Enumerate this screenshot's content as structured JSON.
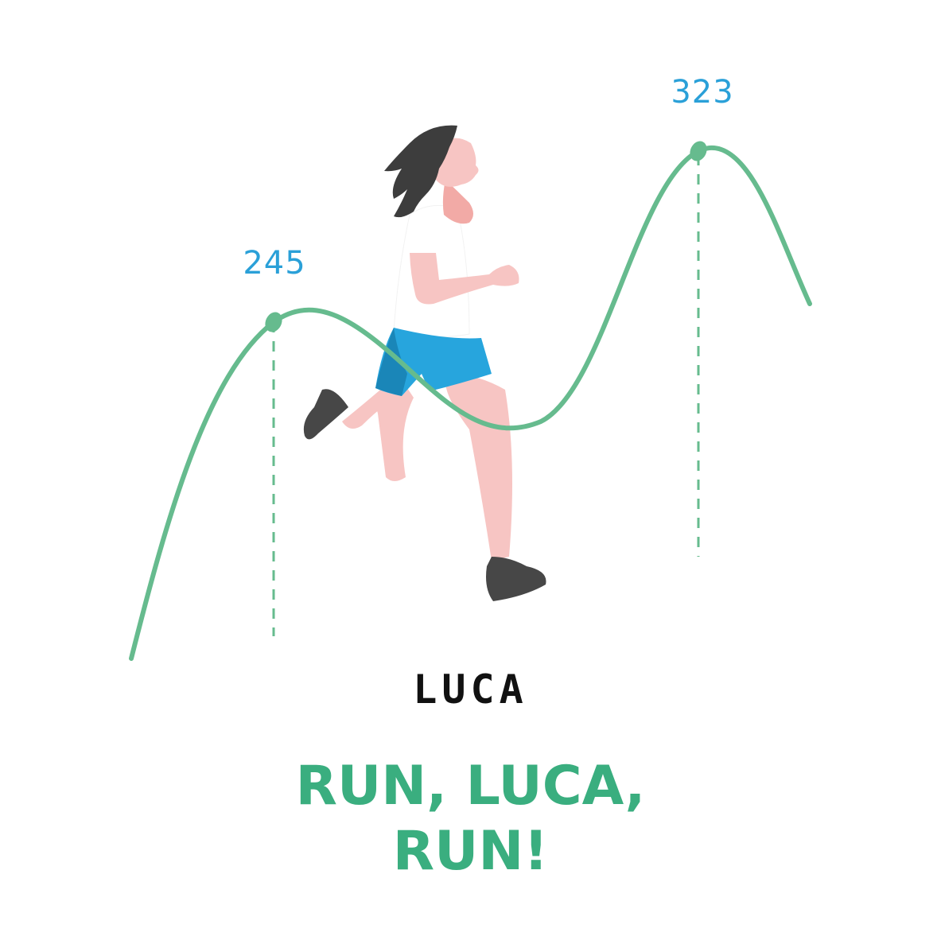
{
  "peaks": [
    {
      "label": "245"
    },
    {
      "label": "323"
    }
  ],
  "brand": {
    "name": "LUCA"
  },
  "tagline": {
    "line1": "RUN, LUCA,",
    "line2": "RUN!"
  },
  "colors": {
    "curve": "#66bb8e",
    "label": "#2aa0d8",
    "tagline": "#3aae7f",
    "brand": "#111111",
    "skin": "#f7c5c3",
    "hair": "#3d3d3d",
    "shorts": "#27a5dd",
    "shorts_shade": "#1a86b8",
    "shoe": "#474747",
    "shirt": "#ffffff"
  },
  "icons": [
    "runner-illustration"
  ]
}
